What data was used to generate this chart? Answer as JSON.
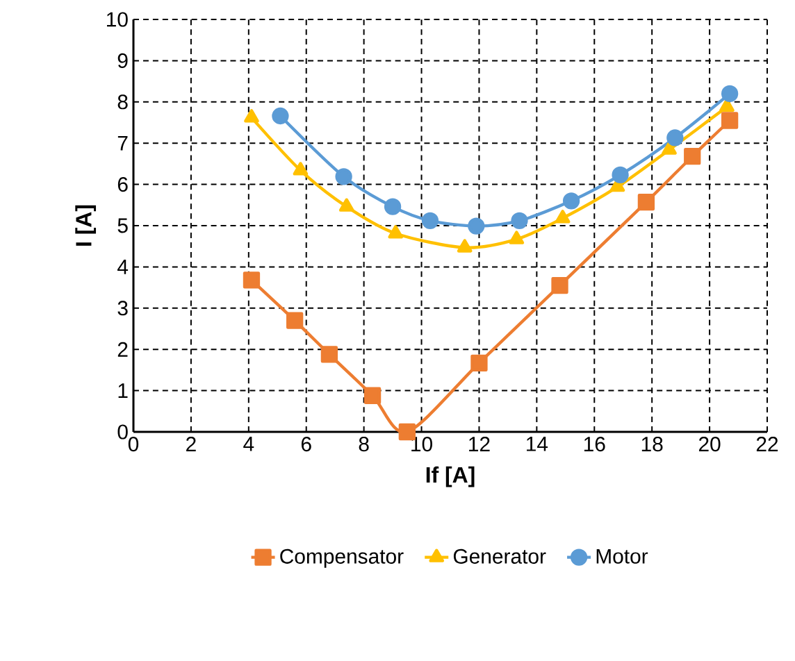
{
  "chart_data": {
    "type": "line",
    "xlabel": "If [A]",
    "ylabel": "I [A]",
    "xlim": [
      0,
      22
    ],
    "ylim": [
      0,
      10
    ],
    "xticks": [
      0,
      2,
      4,
      6,
      8,
      10,
      12,
      14,
      16,
      18,
      20,
      22
    ],
    "yticks": [
      0,
      1,
      2,
      3,
      4,
      5,
      6,
      7,
      8,
      9,
      10
    ],
    "grid": true,
    "legend": "bottom",
    "line_style": "solid",
    "series": [
      {
        "name": "Compensator",
        "color": "#ed7d31",
        "marker": "square",
        "x": [
          4.1,
          5.6,
          6.8,
          8.3,
          9.5,
          12.0,
          14.8,
          17.8,
          19.4,
          20.7
        ],
        "values": [
          3.68,
          2.7,
          1.88,
          0.88,
          0,
          1.67,
          3.55,
          5.57,
          6.68,
          7.55
        ]
      },
      {
        "name": "Generator",
        "color": "#ffc000",
        "marker": "triangle",
        "x": [
          4.1,
          5.8,
          7.4,
          9.1,
          11.5,
          13.3,
          14.9,
          16.8,
          18.6,
          20.6
        ],
        "values": [
          7.62,
          6.34,
          5.46,
          4.81,
          4.47,
          4.67,
          5.18,
          5.94,
          6.84,
          7.88
        ]
      },
      {
        "name": "Motor",
        "color": "#5b9bd5",
        "marker": "circle",
        "x": [
          5.1,
          7.3,
          9.0,
          10.3,
          11.9,
          13.4,
          15.2,
          16.9,
          18.8,
          20.7
        ],
        "values": [
          7.66,
          6.19,
          5.46,
          5.12,
          4.99,
          5.12,
          5.6,
          6.23,
          7.13,
          8.2
        ]
      }
    ]
  }
}
